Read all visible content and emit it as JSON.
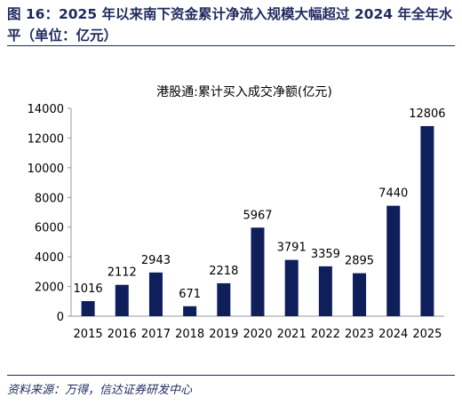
{
  "figure": {
    "title": "图 16：2025 年以来南下资金累计净流入规模大幅超过 2024 年全年水平（单位：亿元）",
    "source": "资料来源：万得，信达证券研发中心"
  },
  "chart_data": {
    "type": "bar",
    "title": "港股通:累计买入成交净额(亿元)",
    "categories": [
      "2015",
      "2016",
      "2017",
      "2018",
      "2019",
      "2020",
      "2021",
      "2022",
      "2023",
      "2024",
      "2025"
    ],
    "values": [
      1016,
      2112,
      2943,
      671,
      2218,
      5967,
      3791,
      3359,
      2895,
      7440,
      12806
    ],
    "data_labels": [
      "1016",
      "2112",
      "2943",
      "671",
      "2218",
      "5967",
      "3791",
      "3359",
      "2895",
      "7440",
      "12806"
    ],
    "ylim": [
      0,
      14000
    ],
    "yticks": [
      0,
      2000,
      4000,
      6000,
      8000,
      10000,
      12000,
      14000
    ],
    "ytick_labels": [
      "0",
      "2000",
      "4000",
      "6000",
      "8000",
      "10000",
      "12000",
      "14000"
    ],
    "grid": false,
    "legend": "none",
    "bar_color": "#0f1f5c"
  }
}
